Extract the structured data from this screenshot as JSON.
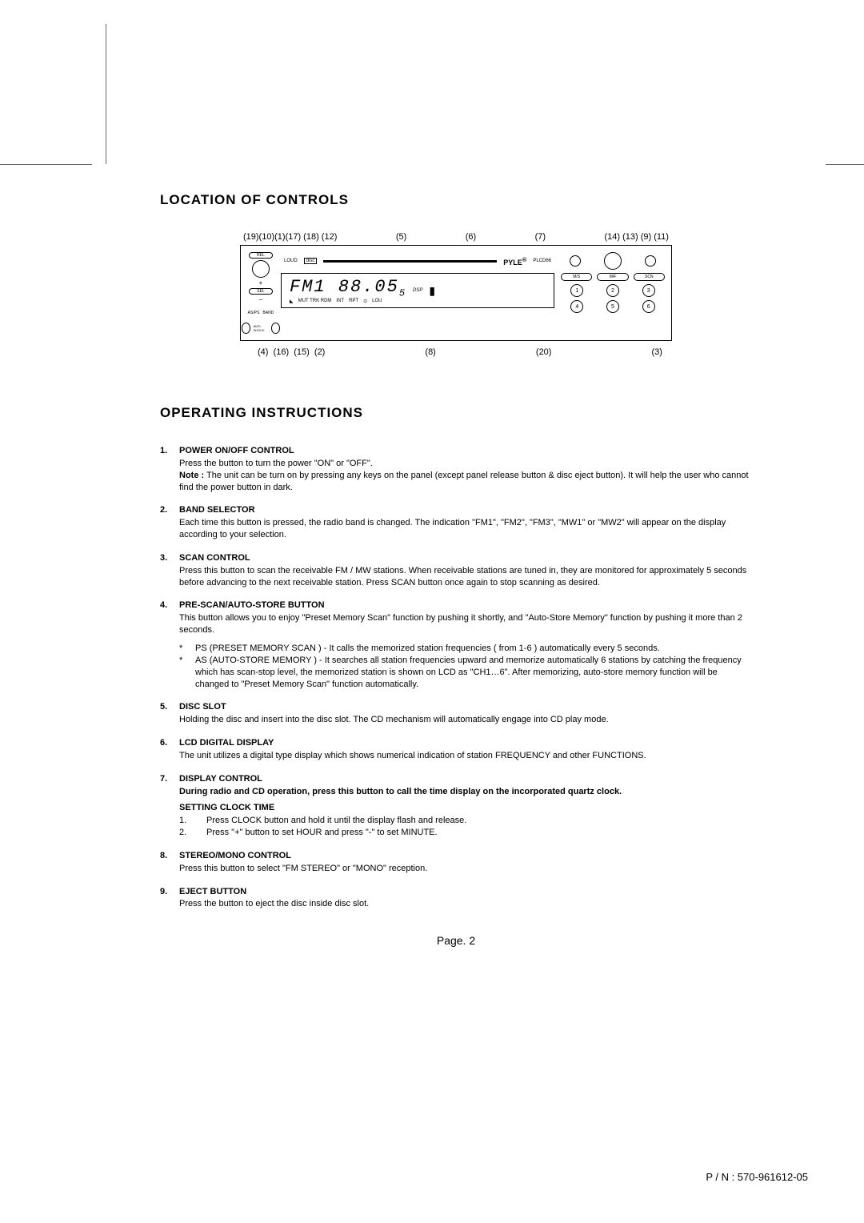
{
  "vline_height": 175,
  "section1_title": "LOCATION OF CONTROLS",
  "callout_top_left": "(19)(10)(1)(17) (18) (12)",
  "callout_top_mid1": "(5)",
  "callout_top_mid2": "(6)",
  "callout_top_mid3": "(7)",
  "callout_top_right": "(14) (13) (9) (11)",
  "callout_bot_left": "(4)  (16)  (15)  (2)",
  "callout_bot_mid": "(8)",
  "callout_bot_r1": "(20)",
  "callout_bot_r2": "(3)",
  "device": {
    "brand": "PYLE",
    "model": "PLCD66",
    "lcd": "FM1  88.05",
    "lcd_small": "5",
    "lcd_labels": [
      "MUT TRK RDM",
      "INT",
      "RPT",
      "LOU"
    ],
    "slot_labels": [
      "disc"
    ],
    "indicator": "DSP",
    "right_pills": [
      "M/S",
      "M/F",
      "SCN"
    ],
    "presets": [
      "1",
      "2",
      "3",
      "4",
      "5",
      "6"
    ],
    "left_labels": [
      "REL",
      "SEL",
      "AS/PS",
      "BAND",
      "ANTI-SHOCK"
    ],
    "knob_label": "LOUD"
  },
  "section2_title": "OPERATING INSTRUCTIONS",
  "items": [
    {
      "num": "1.",
      "title": "POWER ON/OFF CONTROL",
      "paras": [
        "Press the button to turn the power \"ON\" or \"OFF\".",
        "Note : The unit can be turn on by pressing any keys on the panel (except panel release button & disc eject button). It will help the user who cannot find the power button in dark."
      ],
      "note_prefix": "Note :"
    },
    {
      "num": "2.",
      "title": "BAND SELECTOR",
      "paras": [
        "Each time this button is pressed, the radio band is changed.  The indication \"FM1\", \"FM2\", \"FM3\", \"MW1\" or \"MW2\" will appear on the display according to your selection."
      ]
    },
    {
      "num": "3.",
      "title": "SCAN CONTROL",
      "paras": [
        "Press this button to scan the receivable FM / MW stations. When receivable stations are tuned in, they are monitored for approximately 5 seconds before advancing to the next receivable station. Press SCAN button once again to stop scanning as desired."
      ]
    },
    {
      "num": "4.",
      "title": "PRE-SCAN/AUTO-STORE BUTTON",
      "paras": [
        "This button allows you to enjoy \"Preset Memory Scan\" function by pushing it shortly, and \"Auto-Store Memory\" function by pushing it more than 2 seconds."
      ],
      "bullets": [
        "PS (PRESET MEMORY SCAN ) - It calls the memorized station frequencies ( from 1-6 ) automatically every 5 seconds.",
        "AS (AUTO-STORE MEMORY ) - It searches all station frequencies upward and memorize automatically 6 stations by catching the frequency which has scan-stop level, the memorized station is shown on LCD as \"CH1…6\". After memorizing, auto-store memory function will be changed  to \"Preset Memory Scan\" function automatically."
      ]
    },
    {
      "num": "5.",
      "title": "DISC SLOT",
      "paras": [
        "Holding the disc and insert into the disc slot. The CD mechanism will automatically engage into CD play mode."
      ]
    },
    {
      "num": "6.",
      "title": "LCD DIGITAL DISPLAY",
      "paras": [
        "The unit utilizes a digital type display which shows numerical indication of station FREQUENCY and other FUNCTIONS."
      ]
    },
    {
      "num": "7.",
      "title": "DISPLAY CONTROL",
      "paras": [],
      "bold_line": "During radio and CD operation, press this button to call the time display on the incorporated quartz clock.",
      "subtitle": "SETTING CLOCK TIME",
      "numbered": [
        {
          "n": "1.",
          "t": "Press CLOCK button and hold it until the display flash and release."
        },
        {
          "n": "2.",
          "t": "Press \"+\" button to set HOUR and press \"-\" to set  MINUTE."
        }
      ]
    },
    {
      "num": "8.",
      "title": "STEREO/MONO CONTROL",
      "paras": [
        "Press this button to select \"FM STEREO\" or \"MONO\" reception."
      ]
    },
    {
      "num": "9.",
      "title": "EJECT BUTTON",
      "paras": [
        "Press the button to eject the disc inside disc slot."
      ]
    }
  ],
  "page_label": "Page.  2",
  "part_number": "P / N : 570-961612-05"
}
